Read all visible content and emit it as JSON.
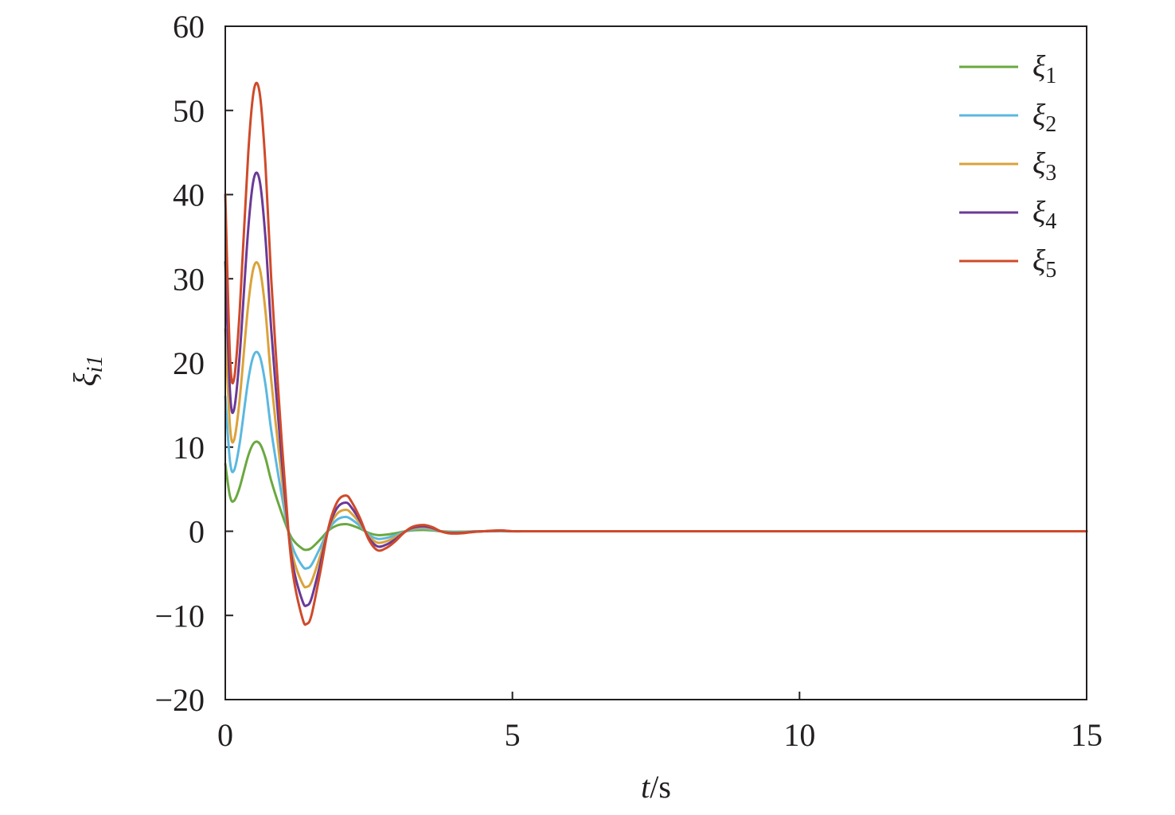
{
  "chart_data": {
    "type": "line",
    "title": "",
    "xlabel": {
      "italic": "t",
      "rest": "/s"
    },
    "ylabel": {
      "base": "ξ",
      "sub": "i1"
    },
    "xlim": [
      0,
      15
    ],
    "ylim": [
      -20,
      60
    ],
    "xticks": [
      0,
      5,
      10,
      15
    ],
    "yticks": [
      -20,
      -10,
      0,
      10,
      20,
      30,
      40,
      50,
      60
    ],
    "xtick_labels": [
      "0",
      "5",
      "10",
      "15"
    ],
    "ytick_labels": [
      "−20",
      "−10",
      "0",
      "10",
      "20",
      "30",
      "40",
      "50",
      "60"
    ],
    "grid": false,
    "legend_position": "top-right",
    "x": [
      0,
      0.08,
      0.15,
      0.25,
      0.4,
      0.5,
      0.6,
      0.7,
      0.8,
      0.95,
      1.1,
      1.2,
      1.35,
      1.42,
      1.5,
      1.65,
      1.8,
      1.95,
      2.1,
      2.2,
      2.35,
      2.5,
      2.65,
      2.8,
      2.95,
      3.1,
      3.25,
      3.45,
      3.6,
      3.75,
      3.9,
      4.1,
      4.3,
      4.5,
      4.8,
      5.0,
      5.3,
      5.6,
      6.0,
      7.0,
      8.0,
      10.0,
      12.0,
      15.0
    ],
    "series": [
      {
        "name": "ξ",
        "sub": "1",
        "color": "#6aa83f",
        "values": [
          8.0,
          4.2,
          3.6,
          5.2,
          9.0,
          10.5,
          10.4,
          8.7,
          6.0,
          2.8,
          0.0,
          -1.2,
          -2.1,
          -2.2,
          -2.0,
          -1.0,
          0.1,
          0.7,
          0.85,
          0.7,
          0.3,
          -0.2,
          -0.45,
          -0.4,
          -0.25,
          -0.05,
          0.1,
          0.15,
          0.1,
          0.0,
          -0.05,
          -0.05,
          -0.02,
          0.0,
          0.02,
          0.0,
          0.0,
          0.0,
          0.0,
          0.0,
          0.0,
          0.0,
          0.0,
          0.0
        ]
      },
      {
        "name": "ξ",
        "sub": "2",
        "color": "#5bb8e0",
        "values": [
          16.0,
          8.4,
          7.2,
          10.4,
          18.0,
          21.0,
          20.8,
          17.4,
          12.0,
          5.6,
          0.0,
          -2.4,
          -4.2,
          -4.4,
          -4.0,
          -2.0,
          0.2,
          1.4,
          1.7,
          1.4,
          0.6,
          -0.4,
          -0.9,
          -0.8,
          -0.5,
          -0.1,
          0.2,
          0.3,
          0.2,
          0.0,
          -0.1,
          -0.1,
          -0.04,
          0.0,
          0.04,
          0.0,
          0.0,
          0.0,
          0.0,
          0.0,
          0.0,
          0.0,
          0.0,
          0.0
        ]
      },
      {
        "name": "ξ",
        "sub": "3",
        "color": "#dba23a",
        "values": [
          24.0,
          12.6,
          10.8,
          15.6,
          27.0,
          31.5,
          31.2,
          26.1,
          18.0,
          8.4,
          0.0,
          -3.6,
          -6.3,
          -6.6,
          -6.0,
          -3.0,
          0.3,
          2.1,
          2.55,
          2.1,
          0.9,
          -0.6,
          -1.35,
          -1.2,
          -0.75,
          -0.15,
          0.3,
          0.45,
          0.3,
          0.0,
          -0.15,
          -0.15,
          -0.06,
          0.0,
          0.06,
          0.0,
          0.0,
          0.0,
          0.0,
          0.0,
          0.0,
          0.0,
          0.0,
          0.0
        ]
      },
      {
        "name": "ξ",
        "sub": "4",
        "color": "#6b3a96",
        "values": [
          32.0,
          16.8,
          14.4,
          20.8,
          36.0,
          42.0,
          41.6,
          34.8,
          24.0,
          11.2,
          0.0,
          -4.8,
          -8.4,
          -8.8,
          -8.0,
          -4.0,
          0.4,
          2.8,
          3.4,
          2.8,
          1.2,
          -0.8,
          -1.8,
          -1.6,
          -1.0,
          -0.2,
          0.4,
          0.6,
          0.4,
          0.0,
          -0.2,
          -0.2,
          -0.08,
          0.0,
          0.08,
          0.0,
          0.0,
          0.0,
          0.0,
          0.0,
          0.0,
          0.0,
          0.0,
          0.0
        ]
      },
      {
        "name": "ξ",
        "sub": "5",
        "color": "#cf4a2a",
        "values": [
          40.0,
          21.0,
          18.0,
          26.0,
          45.0,
          52.5,
          52.0,
          43.5,
          30.0,
          14.0,
          0.0,
          -6.0,
          -10.5,
          -11.0,
          -10.0,
          -5.0,
          0.5,
          3.5,
          4.25,
          3.5,
          1.5,
          -1.0,
          -2.25,
          -2.0,
          -1.25,
          -0.25,
          0.5,
          0.75,
          0.5,
          0.0,
          -0.25,
          -0.25,
          -0.1,
          0.0,
          0.1,
          0.0,
          0.0,
          0.0,
          0.0,
          0.0,
          0.0,
          0.0,
          0.0,
          0.0
        ]
      }
    ]
  }
}
